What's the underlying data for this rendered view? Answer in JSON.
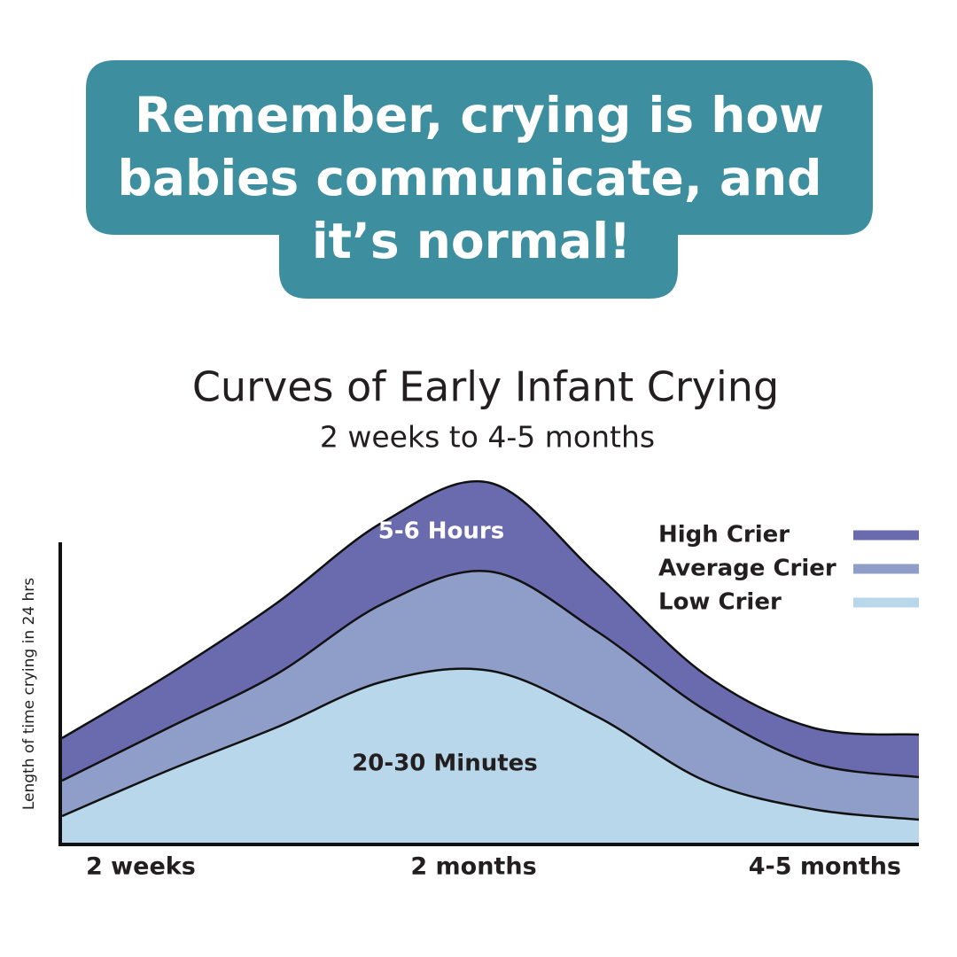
{
  "banner": {
    "lines": [
      "Remember, crying is how",
      "babies communicate, and",
      "it’s normal!"
    ]
  },
  "chart_data": {
    "type": "stacked-area",
    "title": "Curves of Early Infant Crying",
    "subtitle": "2 weeks to 4-5 months",
    "y_label": "Length of time crying in 24 hrs",
    "categories": [
      "2 weeks",
      null,
      null,
      null,
      "2 months",
      null,
      null,
      null,
      "4-5 months"
    ],
    "series": [
      {
        "name": "Low Crier",
        "color": "#b9d7ea",
        "values": [
          8,
          21,
          33,
          46,
          49,
          36,
          18,
          10,
          7
        ]
      },
      {
        "name": "Average Crier",
        "color": "#8f9ec8",
        "values": [
          10,
          12,
          15,
          22,
          28,
          24,
          20,
          13,
          12
        ]
      },
      {
        "name": "High Crier",
        "color": "#6a6aae",
        "values": [
          12,
          15,
          20,
          23,
          25,
          16,
          10,
          10,
          12
        ]
      }
    ],
    "annotations": [
      "5-6 Hours",
      "20-30 Minutes"
    ],
    "ylim": [
      0,
      105
    ],
    "legend": "upper-right"
  }
}
